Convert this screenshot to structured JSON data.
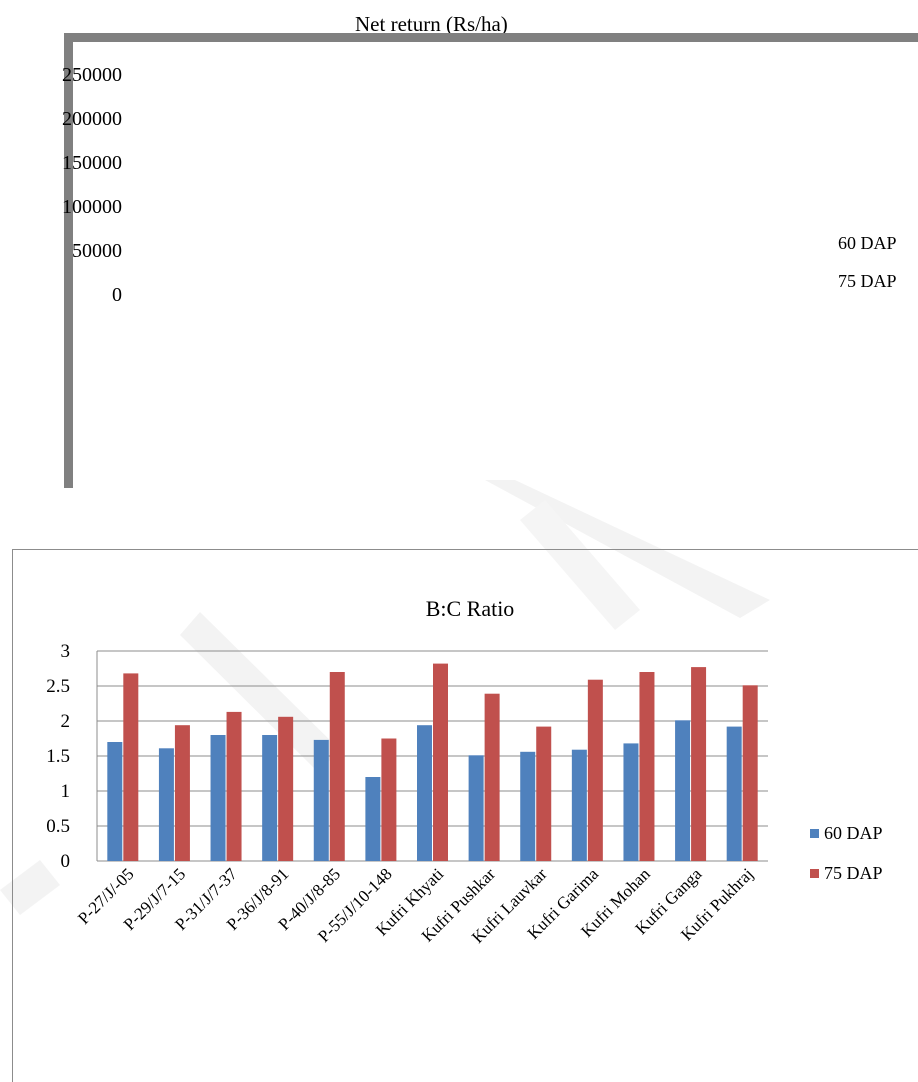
{
  "charts": {
    "net_return": {
      "title": "Net return (Rs/ha)",
      "y_ticks": [
        "250000",
        "200000",
        "150000",
        "100000",
        "50000",
        "0"
      ],
      "legend": [
        "60 DAP",
        "75 DAP"
      ]
    },
    "bc_ratio": {
      "title": "B:C Ratio",
      "legend": [
        "60 DAP",
        "75 DAP"
      ]
    }
  },
  "chart_data": [
    {
      "type": "bar",
      "title": "Net return (Rs/ha)",
      "ylim": [
        0,
        250000
      ],
      "y_ticks": [
        0,
        50000,
        100000,
        150000,
        200000,
        250000
      ],
      "categories": [],
      "series": [
        {
          "name": "60 DAP",
          "values": []
        },
        {
          "name": "75 DAP",
          "values": []
        }
      ],
      "legend_position": "right"
    },
    {
      "type": "bar",
      "title": "B:C Ratio",
      "xlabel": "",
      "ylabel": "",
      "ylim": [
        0,
        3
      ],
      "y_ticks": [
        0,
        0.5,
        1,
        1.5,
        2,
        2.5,
        3
      ],
      "grid": true,
      "legend_position": "right",
      "categories": [
        "P-27/J/-05",
        "P-29/J/7-15",
        "P-31/J/7-37",
        "P-36/J/8-91",
        "P-40/J/8-85",
        "P-55/J/10-148",
        "Kufri Khyati",
        "Kufri Pushkar",
        "Kufri Lauvkar",
        "Kufri Garima",
        "Kufri Mohan",
        "Kufri Ganga",
        "Kufri Pukhraj"
      ],
      "series": [
        {
          "name": "60 DAP",
          "color": "#4F81BD",
          "values": [
            1.7,
            1.61,
            1.8,
            1.8,
            1.73,
            1.2,
            1.94,
            1.51,
            1.56,
            1.59,
            1.68,
            2.01,
            1.92
          ]
        },
        {
          "name": "75 DAP",
          "color": "#C0504D",
          "values": [
            2.68,
            1.94,
            2.13,
            2.06,
            2.7,
            1.75,
            2.82,
            2.39,
            1.92,
            2.59,
            2.7,
            2.77,
            2.51
          ]
        }
      ]
    }
  ]
}
